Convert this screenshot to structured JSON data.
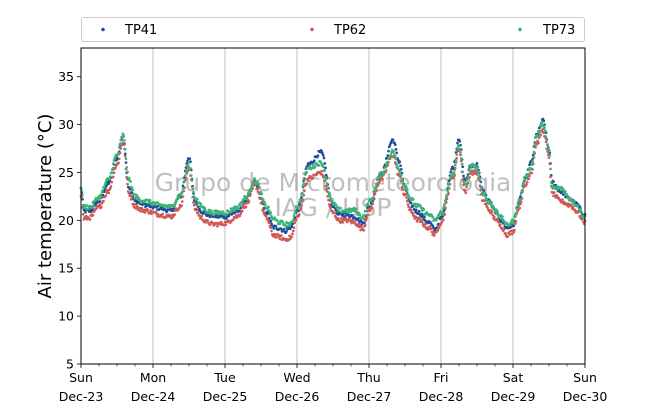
{
  "chart_data": {
    "type": "scatter",
    "title": "",
    "xlabel": "",
    "ylabel": "Air temperature (°C)",
    "ylim": [
      5,
      38
    ],
    "yticks": [
      5,
      10,
      15,
      20,
      25,
      30,
      35
    ],
    "xlim": [
      "Sun Dec-23",
      "Sun Dec-30"
    ],
    "xticks": [
      {
        "day": "Sun",
        "date": "Dec-23"
      },
      {
        "day": "Mon",
        "date": "Dec-24"
      },
      {
        "day": "Tue",
        "date": "Dec-25"
      },
      {
        "day": "Wed",
        "date": "Dec-26"
      },
      {
        "day": "Thu",
        "date": "Dec-27"
      },
      {
        "day": "Fri",
        "date": "Dec-28"
      },
      {
        "day": "Sat",
        "date": "Dec-29"
      },
      {
        "day": "Sun",
        "date": "Dec-30"
      }
    ],
    "grid": "vertical lines at day ticks",
    "legend_position": "top, outside plot, 3 columns",
    "time_unit": "hours since Sun Dec-23 00:00",
    "watermark": [
      "Grupo de Micrometeorologia",
      "IAG / USP"
    ],
    "series": [
      {
        "name": "TP41",
        "color": "#1f4e9c",
        "x": [
          0,
          1,
          3,
          6,
          9,
          12,
          14,
          16,
          18,
          20,
          22,
          24,
          26,
          30,
          33,
          36,
          38,
          40,
          42,
          44,
          46,
          48,
          52,
          55,
          58,
          62,
          64,
          66,
          68,
          70,
          72,
          76,
          80,
          84,
          86,
          87.5,
          89,
          91,
          94,
          96,
          100,
          104,
          106,
          108,
          110,
          112,
          116,
          118,
          120,
          124,
          126,
          128,
          130,
          132,
          134,
          136,
          138,
          140,
          142,
          144,
          146,
          148,
          150,
          152,
          154,
          156,
          157,
          160,
          163,
          165,
          168
        ],
        "y": [
          23.3,
          21.0,
          21.0,
          22.0,
          23.8,
          26.5,
          28.8,
          23.5,
          22.0,
          21.8,
          21.6,
          21.4,
          21.3,
          21.0,
          22.5,
          26.6,
          22.0,
          21.0,
          20.6,
          20.5,
          20.4,
          20.4,
          20.9,
          22.1,
          24.0,
          20.8,
          19.3,
          19.2,
          18.9,
          19.3,
          21.0,
          25.9,
          27.1,
          21.6,
          20.6,
          20.6,
          20.6,
          20.4,
          19.7,
          21.4,
          24.8,
          28.4,
          26.2,
          23.4,
          21.6,
          20.9,
          19.8,
          19.0,
          20.2,
          25.5,
          28.6,
          24.0,
          25.7,
          25.8,
          23.0,
          22.0,
          21.0,
          20.0,
          19.2,
          19.5,
          22.0,
          24.2,
          26.0,
          29.0,
          30.4,
          27.5,
          24.0,
          23.0,
          22.2,
          21.7,
          20.5
        ]
      },
      {
        "name": "TP62",
        "color": "#cf5a55",
        "x": [
          0,
          1,
          3,
          6,
          9,
          12,
          14,
          16,
          18,
          20,
          22,
          24,
          26,
          30,
          33,
          36,
          38,
          40,
          42,
          44,
          46,
          48,
          52,
          55,
          58,
          62,
          64,
          66,
          68,
          70,
          72,
          76,
          80,
          84,
          86,
          87.5,
          89,
          91,
          94,
          96,
          100,
          104,
          106,
          108,
          110,
          112,
          116,
          118,
          120,
          124,
          126,
          128,
          130,
          132,
          134,
          136,
          138,
          140,
          142,
          144,
          146,
          148,
          150,
          152,
          154,
          156,
          157,
          160,
          163,
          165,
          168
        ],
        "y": [
          22.6,
          20.2,
          20.3,
          21.4,
          23.0,
          25.8,
          28.2,
          22.8,
          21.5,
          21.1,
          21.0,
          20.8,
          20.6,
          20.4,
          21.4,
          25.5,
          21.2,
          20.3,
          19.8,
          19.6,
          19.6,
          19.7,
          20.4,
          21.6,
          23.6,
          20.2,
          18.5,
          18.3,
          18.0,
          18.2,
          20.3,
          24.4,
          25.0,
          20.8,
          20.0,
          20.0,
          20.0,
          19.8,
          19.1,
          21.0,
          24.3,
          26.8,
          24.7,
          22.6,
          20.9,
          20.1,
          19.2,
          18.5,
          19.8,
          24.5,
          27.5,
          23.0,
          25.0,
          25.0,
          22.1,
          21.1,
          20.2,
          19.4,
          18.5,
          18.8,
          21.4,
          23.6,
          25.0,
          28.1,
          29.4,
          26.6,
          22.8,
          22.0,
          21.6,
          21.0,
          19.8
        ]
      },
      {
        "name": "TP73",
        "color": "#3cb477",
        "x": [
          0,
          1,
          3,
          6,
          9,
          12,
          14,
          16,
          18,
          20,
          22,
          24,
          26,
          30,
          33,
          36,
          38,
          40,
          42,
          44,
          46,
          48,
          52,
          55,
          58,
          62,
          64,
          66,
          68,
          70,
          72,
          76,
          80,
          84,
          86,
          87.5,
          89,
          91,
          94,
          96,
          100,
          104,
          106,
          108,
          110,
          112,
          116,
          118,
          120,
          124,
          126,
          128,
          130,
          132,
          134,
          136,
          138,
          140,
          142,
          144,
          146,
          148,
          150,
          152,
          154,
          156,
          157,
          160,
          163,
          165,
          168
        ],
        "y": [
          23.5,
          21.4,
          21.4,
          22.4,
          24.2,
          26.8,
          28.9,
          24.2,
          22.5,
          22.1,
          22.0,
          21.8,
          21.6,
          21.4,
          22.6,
          25.8,
          22.4,
          21.5,
          21.0,
          20.8,
          20.8,
          20.8,
          21.3,
          22.4,
          24.2,
          21.4,
          20.2,
          19.8,
          19.6,
          19.6,
          21.4,
          25.5,
          26.0,
          21.8,
          21.1,
          21.0,
          21.0,
          21.1,
          20.3,
          21.9,
          24.8,
          27.2,
          25.3,
          23.6,
          22.2,
          21.5,
          20.6,
          20.0,
          20.8,
          24.8,
          27.8,
          23.6,
          25.7,
          25.5,
          22.8,
          21.9,
          21.1,
          20.3,
          19.5,
          19.9,
          22.0,
          24.4,
          25.6,
          28.8,
          30.1,
          27.3,
          23.4,
          23.4,
          22.3,
          21.7,
          20.3
        ]
      }
    ]
  }
}
